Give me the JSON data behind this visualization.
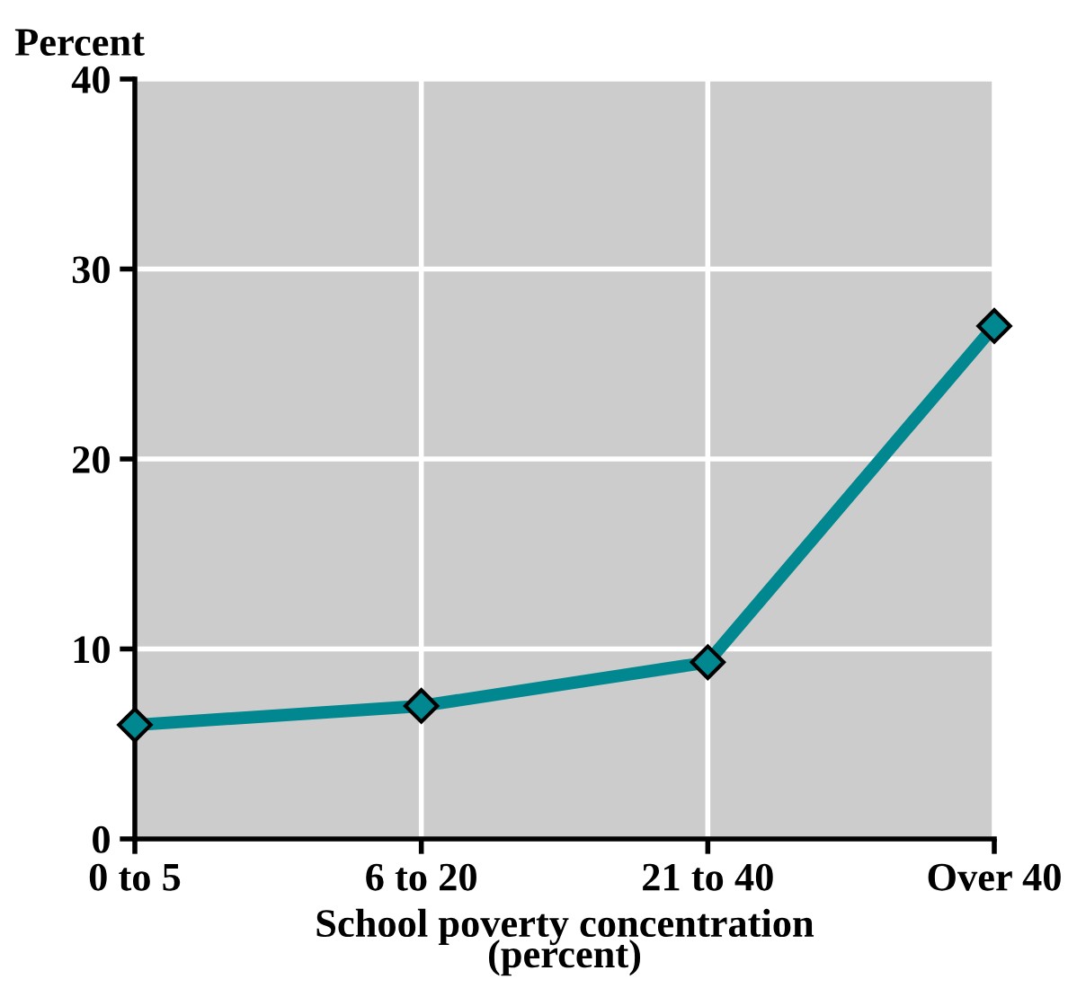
{
  "chart_data": {
    "type": "line",
    "ylabel": "Percent",
    "xlabel": "School poverty concentration\n(percent)",
    "categories": [
      "0 to 5",
      "6 to 20",
      "21 to 40",
      "Over 40"
    ],
    "series": [
      {
        "color": "#00878f",
        "values": [
          6,
          7,
          9.3,
          27
        ]
      }
    ],
    "ylim": [
      0,
      40
    ],
    "yticks": [
      0,
      10,
      20,
      30,
      40
    ],
    "grid": true,
    "marker": "diamond",
    "line_style": "solid"
  }
}
